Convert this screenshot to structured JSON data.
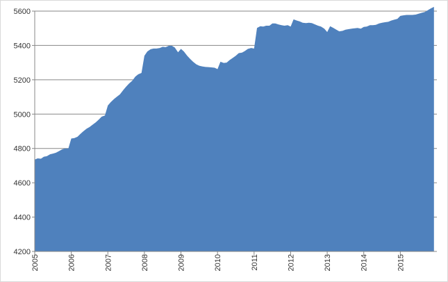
{
  "chart_data": {
    "type": "area",
    "title": "",
    "xlabel": "",
    "ylabel": "",
    "x_tick_labels": [
      "2005",
      "2006",
      "2007",
      "2008",
      "2009",
      "2010",
      "2011",
      "2012",
      "2013",
      "2014",
      "2015"
    ],
    "y_tick_labels": [
      "4200",
      "4400",
      "4600",
      "4800",
      "5000",
      "5200",
      "5400",
      "5600"
    ],
    "ylim": [
      4200,
      5600
    ],
    "xlim": [
      2005,
      2016
    ],
    "grid": "horizontal",
    "legend": "none",
    "color": "#4f81bd",
    "series": [
      {
        "x": [
          2005.0,
          2005.08,
          2005.17,
          2005.25,
          2005.33,
          2005.42,
          2005.5,
          2005.58,
          2005.67,
          2005.75,
          2005.83,
          2005.92,
          2006.0,
          2006.08,
          2006.17,
          2006.25,
          2006.33,
          2006.42,
          2006.5,
          2006.58,
          2006.67,
          2006.75,
          2006.83,
          2006.92,
          2007.0,
          2007.08,
          2007.17,
          2007.25,
          2007.33,
          2007.42,
          2007.5,
          2007.58,
          2007.67,
          2007.75,
          2007.83,
          2007.92,
          2008.0,
          2008.08,
          2008.17,
          2008.25,
          2008.33,
          2008.42,
          2008.5,
          2008.58,
          2008.67,
          2008.75,
          2008.83,
          2008.92,
          2009.0,
          2009.08,
          2009.17,
          2009.25,
          2009.33,
          2009.42,
          2009.5,
          2009.58,
          2009.67,
          2009.75,
          2009.83,
          2009.92,
          2010.0,
          2010.08,
          2010.17,
          2010.25,
          2010.33,
          2010.42,
          2010.5,
          2010.58,
          2010.67,
          2010.75,
          2010.83,
          2010.92,
          2011.0,
          2011.08,
          2011.17,
          2011.25,
          2011.33,
          2011.42,
          2011.5,
          2011.58,
          2011.67,
          2011.75,
          2011.83,
          2011.92,
          2012.0,
          2012.08,
          2012.17,
          2012.25,
          2012.33,
          2012.42,
          2012.5,
          2012.58,
          2012.67,
          2012.75,
          2012.83,
          2012.92,
          2013.0,
          2013.08,
          2013.17,
          2013.25,
          2013.33,
          2013.42,
          2013.5,
          2013.58,
          2013.67,
          2013.75,
          2013.83,
          2013.92,
          2014.0,
          2014.08,
          2014.17,
          2014.25,
          2014.33,
          2014.42,
          2014.5,
          2014.58,
          2014.67,
          2014.75,
          2014.83,
          2014.92,
          2015.0,
          2015.08,
          2015.17,
          2015.25,
          2015.33,
          2015.42,
          2015.5,
          2015.58,
          2015.67,
          2015.75,
          2015.83,
          2015.92
        ],
        "values": [
          4735,
          4742,
          4740,
          4752,
          4755,
          4766,
          4770,
          4775,
          4785,
          4795,
          4800,
          4800,
          4858,
          4860,
          4868,
          4885,
          4900,
          4915,
          4925,
          4938,
          4952,
          4968,
          4985,
          4992,
          5050,
          5070,
          5088,
          5102,
          5115,
          5140,
          5160,
          5178,
          5195,
          5218,
          5232,
          5240,
          5340,
          5365,
          5378,
          5382,
          5382,
          5385,
          5392,
          5390,
          5398,
          5398,
          5388,
          5360,
          5380,
          5365,
          5340,
          5322,
          5305,
          5290,
          5282,
          5278,
          5275,
          5274,
          5272,
          5270,
          5262,
          5305,
          5298,
          5300,
          5315,
          5328,
          5340,
          5355,
          5358,
          5368,
          5380,
          5385,
          5382,
          5502,
          5512,
          5510,
          5515,
          5515,
          5528,
          5528,
          5522,
          5518,
          5515,
          5518,
          5510,
          5552,
          5545,
          5540,
          5532,
          5530,
          5532,
          5530,
          5522,
          5515,
          5510,
          5498,
          5478,
          5512,
          5502,
          5492,
          5482,
          5485,
          5492,
          5495,
          5498,
          5500,
          5502,
          5498,
          5508,
          5510,
          5518,
          5518,
          5520,
          5528,
          5532,
          5535,
          5538,
          5545,
          5550,
          5555,
          5572,
          5575,
          5578,
          5578,
          5578,
          5580,
          5585,
          5590,
          5595,
          5605,
          5615,
          5625
        ]
      }
    ]
  }
}
